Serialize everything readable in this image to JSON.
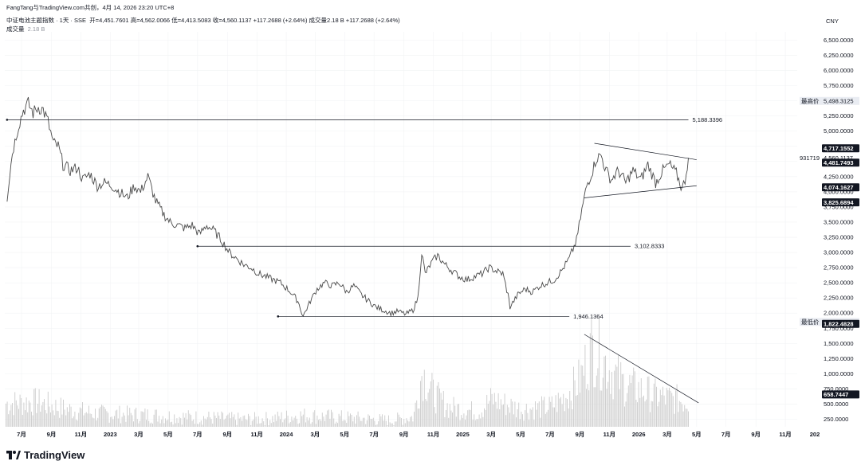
{
  "header": {
    "attribution": "FangTang与TradingView.com共创，4月 14, 2026 23:20 UTC+8",
    "symbol_line": "中证电池主题指数 · 1天 · SSE",
    "ohlc": "开=4,451.7601  高=4,562.0066  低=4,413.5083  收=4,560.1137  +117.2688 (+2.64%)  成交量2.18 B  +117.2688 (+2.64%)",
    "volume_label": "成交量",
    "volume_value": "2.18 B",
    "currency": "CNY"
  },
  "branding": {
    "logo_text": "TradingView"
  },
  "colors": {
    "price_line": "#4a4a4a",
    "volume_bar": "#d0d0d0",
    "axis_text": "#131722",
    "grid": "#f2f3f5",
    "label_dark": "#131722",
    "label_light": "#e9ecf2"
  },
  "chart_data": {
    "type": "line",
    "title": "",
    "xlabel": "",
    "ylabel": "",
    "ylim": [
      150,
      6700
    ],
    "grid": true,
    "legend": "none",
    "price_ticks": [
      "6,500.0000",
      "6,250.0000",
      "6,000.0000",
      "5,750.0000",
      "5,500.0000",
      "5,250.0000",
      "5,000.0000",
      "4,750.0000",
      "4,500.0000",
      "4,250.0000",
      "4,000.0000",
      "3,750.0000",
      "3,500.0000",
      "3,250.0000",
      "3,000.0000",
      "2,750.0000",
      "2,500.0000",
      "2,250.0000",
      "2,000.0000",
      "1,750.0000",
      "1,500.0000",
      "1,250.0000",
      "1,000.0000",
      "750.0000",
      "500.0000",
      "250.0000"
    ],
    "price_tick_values": [
      6500,
      6250,
      6000,
      5750,
      5500,
      5250,
      5000,
      4750,
      4500,
      4250,
      4000,
      3750,
      3500,
      3250,
      3000,
      2750,
      2500,
      2250,
      2000,
      1750,
      1500,
      1250,
      1000,
      750,
      500,
      250
    ],
    "time_ticks": [
      "7月",
      "9月",
      "11月",
      "2023",
      "3月",
      "5月",
      "7月",
      "9月",
      "11月",
      "2024",
      "3月",
      "5月",
      "7月",
      "9月",
      "11月",
      "2025",
      "3月",
      "5月",
      "7月",
      "9月",
      "11月",
      "2026",
      "3月",
      "5月",
      "7月",
      "9月",
      "11月",
      "202"
    ],
    "time_tick_dates": [
      "2022-07",
      "2022-09",
      "2022-11",
      "2023-01",
      "2023-03",
      "2023-05",
      "2023-07",
      "2023-09",
      "2023-11",
      "2024-01",
      "2024-03",
      "2024-05",
      "2024-07",
      "2024-09",
      "2024-11",
      "2025-01",
      "2025-03",
      "2025-05",
      "2025-07",
      "2025-09",
      "2025-11",
      "2026-01",
      "2026-03",
      "2026-05",
      "2026-07",
      "2026-09",
      "2026-11",
      "2027-01"
    ],
    "series": [
      {
        "type": "price",
        "points": [
          [
            "2022-06-01",
            3900
          ],
          [
            "2022-06-12",
            4650
          ],
          [
            "2022-06-25",
            5100
          ],
          [
            "2022-07-05",
            5350
          ],
          [
            "2022-07-15",
            5450
          ],
          [
            "2022-07-25",
            5300
          ],
          [
            "2022-08-05",
            5400
          ],
          [
            "2022-08-15",
            5350
          ],
          [
            "2022-08-25",
            5150
          ],
          [
            "2022-09-05",
            4800
          ],
          [
            "2022-09-15",
            4750
          ],
          [
            "2022-09-25",
            4450
          ],
          [
            "2022-10-10",
            4350
          ],
          [
            "2022-10-25",
            4400
          ],
          [
            "2022-11-05",
            4200
          ],
          [
            "2022-11-20",
            4300
          ],
          [
            "2022-12-05",
            4100
          ],
          [
            "2022-12-20",
            4150
          ],
          [
            "2023-01-05",
            4100
          ],
          [
            "2023-01-20",
            4000
          ],
          [
            "2023-02-05",
            3900
          ],
          [
            "2023-02-20",
            4100
          ],
          [
            "2023-03-05",
            4000
          ],
          [
            "2023-03-20",
            4250
          ],
          [
            "2023-04-05",
            3850
          ],
          [
            "2023-04-20",
            3650
          ],
          [
            "2023-05-05",
            3500
          ],
          [
            "2023-05-20",
            3450
          ],
          [
            "2023-06-05",
            3400
          ],
          [
            "2023-06-20",
            3450
          ],
          [
            "2023-07-05",
            3300
          ],
          [
            "2023-07-20",
            3450
          ],
          [
            "2023-08-05",
            3350
          ],
          [
            "2023-08-20",
            3200
          ],
          [
            "2023-09-05",
            3000
          ],
          [
            "2023-09-20",
            2900
          ],
          [
            "2023-10-05",
            2800
          ],
          [
            "2023-10-20",
            2750
          ],
          [
            "2023-11-05",
            2650
          ],
          [
            "2023-11-20",
            2600
          ],
          [
            "2023-12-05",
            2550
          ],
          [
            "2023-12-20",
            2500
          ],
          [
            "2024-01-10",
            2350
          ],
          [
            "2024-01-25",
            2200
          ],
          [
            "2024-02-05",
            1950
          ],
          [
            "2024-02-20",
            2200
          ],
          [
            "2024-03-05",
            2400
          ],
          [
            "2024-03-20",
            2500
          ],
          [
            "2024-04-05",
            2450
          ],
          [
            "2024-04-20",
            2500
          ],
          [
            "2024-05-05",
            2350
          ],
          [
            "2024-05-20",
            2450
          ],
          [
            "2024-06-05",
            2300
          ],
          [
            "2024-06-20",
            2200
          ],
          [
            "2024-07-05",
            2100
          ],
          [
            "2024-07-20",
            2050
          ],
          [
            "2024-08-05",
            2000
          ],
          [
            "2024-08-20",
            2030
          ],
          [
            "2024-09-05",
            1980
          ],
          [
            "2024-09-20",
            2050
          ],
          [
            "2024-09-30",
            2250
          ],
          [
            "2024-10-08",
            3000
          ],
          [
            "2024-10-15",
            2650
          ],
          [
            "2024-10-30",
            2850
          ],
          [
            "2024-11-10",
            2950
          ],
          [
            "2024-11-25",
            2800
          ],
          [
            "2024-12-10",
            2700
          ],
          [
            "2024-12-25",
            2600
          ],
          [
            "2025-01-10",
            2550
          ],
          [
            "2025-01-25",
            2600
          ],
          [
            "2025-02-10",
            2650
          ],
          [
            "2025-02-25",
            2750
          ],
          [
            "2025-03-10",
            2700
          ],
          [
            "2025-03-25",
            2650
          ],
          [
            "2025-04-05",
            2300
          ],
          [
            "2025-04-09",
            2100
          ],
          [
            "2025-04-25",
            2300
          ],
          [
            "2025-05-10",
            2400
          ],
          [
            "2025-05-25",
            2350
          ],
          [
            "2025-06-10",
            2450
          ],
          [
            "2025-06-25",
            2500
          ],
          [
            "2025-07-10",
            2550
          ],
          [
            "2025-07-25",
            2700
          ],
          [
            "2025-08-10",
            2900
          ],
          [
            "2025-08-25",
            3200
          ],
          [
            "2025-09-05",
            3700
          ],
          [
            "2025-09-15",
            4100
          ],
          [
            "2025-09-25",
            4300
          ],
          [
            "2025-10-05",
            4550
          ],
          [
            "2025-10-15",
            4600
          ],
          [
            "2025-10-25",
            4350
          ],
          [
            "2025-11-05",
            4200
          ],
          [
            "2025-11-20",
            4350
          ],
          [
            "2025-12-05",
            4150
          ],
          [
            "2025-12-20",
            4350
          ],
          [
            "2026-01-05",
            4200
          ],
          [
            "2026-01-20",
            4450
          ],
          [
            "2026-02-05",
            4150
          ],
          [
            "2026-02-20",
            4350
          ],
          [
            "2026-03-05",
            4450
          ],
          [
            "2026-03-20",
            4300
          ],
          [
            "2026-04-01",
            4050
          ],
          [
            "2026-04-07",
            4200
          ],
          [
            "2026-04-14",
            4560
          ]
        ]
      },
      {
        "type": "volume",
        "points": [
          [
            "2022-06",
            620
          ],
          [
            "2022-08",
            650
          ],
          [
            "2022-10",
            500
          ],
          [
            "2022-12",
            420
          ],
          [
            "2023-02",
            400
          ],
          [
            "2023-04",
            380
          ],
          [
            "2023-06",
            350
          ],
          [
            "2023-08",
            330
          ],
          [
            "2023-10",
            300
          ],
          [
            "2023-12",
            320
          ],
          [
            "2024-02",
            380
          ],
          [
            "2024-04",
            350
          ],
          [
            "2024-06",
            320
          ],
          [
            "2024-08",
            280
          ],
          [
            "2024-09-20",
            350
          ],
          [
            "2024-10-08",
            1250
          ],
          [
            "2024-11",
            800
          ],
          [
            "2024-12",
            550
          ],
          [
            "2025-02",
            450
          ],
          [
            "2025-03",
            700
          ],
          [
            "2025-05",
            500
          ],
          [
            "2025-07",
            550
          ],
          [
            "2025-08",
            750
          ],
          [
            "2025-09",
            1100
          ],
          [
            "2025-09-25",
            1750
          ],
          [
            "2025-10-15",
            1550
          ],
          [
            "2025-11",
            1300
          ],
          [
            "2025-12",
            1000
          ],
          [
            "2026-01",
            900
          ],
          [
            "2026-02",
            780
          ],
          [
            "2026-03",
            720
          ],
          [
            "2026-04-14",
            660
          ]
        ]
      }
    ],
    "horizontal_lines": [
      {
        "value": 5188.3396,
        "label": "5,188.3396",
        "from": "2022-06-01",
        "to": "2026-04-14"
      },
      {
        "value": 3102.8333,
        "label": "3,102.8333",
        "from": "2023-07-01",
        "to": "2025-12-15"
      },
      {
        "value": 1946.1364,
        "label": "1,946.1364",
        "from": "2023-12-15",
        "to": "2025-08-10"
      }
    ],
    "trend_lines": [
      {
        "from": [
          "2025-10-01",
          4800
        ],
        "to": [
          "2026-05-01",
          4530
        ]
      },
      {
        "from": [
          "2025-09-10",
          3900
        ],
        "to": [
          "2026-05-01",
          4100
        ]
      },
      {
        "from": [
          "2025-09-10",
          1650
        ],
        "to": [
          "2026-05-05",
          520
        ]
      }
    ],
    "price_labels": [
      {
        "value": 5498.3125,
        "text": "5,498.3125",
        "prefix": "最高价",
        "style": "light"
      },
      {
        "value": 4717.1552,
        "text": "4,717.1552",
        "prefix": "",
        "style": "dark"
      },
      {
        "value": 4560.1137,
        "text": "4,560.1137",
        "prefix": "931719",
        "style": "plain"
      },
      {
        "value": 4481.7493,
        "text": "4,481.7493",
        "prefix": "",
        "style": "dark"
      },
      {
        "value": 4074.1627,
        "text": "4,074.1627",
        "prefix": "",
        "style": "dark"
      },
      {
        "value": 3825.6894,
        "text": "3,825.6894",
        "prefix": "",
        "style": "dark"
      },
      {
        "value": 1854.1947,
        "text": "1,854.1947",
        "prefix": "最低价",
        "style": "light"
      },
      {
        "value": 1822.4828,
        "text": "1,822.4828",
        "prefix": "",
        "style": "dark"
      },
      {
        "value": 658.7447,
        "text": "658.7447",
        "prefix": "",
        "style": "dark"
      }
    ]
  }
}
